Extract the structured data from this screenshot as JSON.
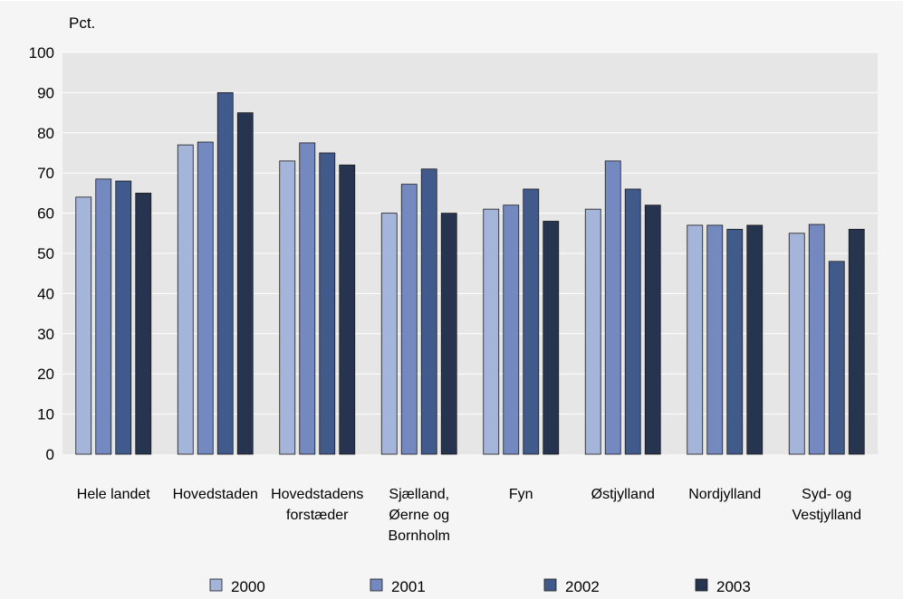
{
  "chart_data": {
    "type": "bar",
    "ylabel": "Pct.",
    "ylim": [
      0,
      100
    ],
    "yticks": [
      0,
      10,
      20,
      30,
      40,
      50,
      60,
      70,
      80,
      90,
      100
    ],
    "grid": true,
    "legend_position": "bottom",
    "categories": [
      [
        "Hele landet"
      ],
      [
        "Hovedstaden"
      ],
      [
        "Hovedstadens",
        "forstæder"
      ],
      [
        "Sjælland,",
        "Øerne og",
        "Bornholm"
      ],
      [
        "Fyn"
      ],
      [
        "Østjylland"
      ],
      [
        "Nordjylland"
      ],
      [
        "Syd- og",
        "Vestjylland"
      ]
    ],
    "series": [
      {
        "name": "2000",
        "color": "#a5b4d9",
        "values": [
          64,
          77,
          73,
          60,
          61,
          61,
          57,
          55
        ]
      },
      {
        "name": "2001",
        "color": "#7389c0",
        "values": [
          68.5,
          77.7,
          77.5,
          67.2,
          62,
          73,
          57,
          57.2
        ]
      },
      {
        "name": "2002",
        "color": "#415a8c",
        "values": [
          68,
          90,
          75,
          71,
          66,
          66,
          56,
          48
        ]
      },
      {
        "name": "2003",
        "color": "#26344f",
        "values": [
          65,
          85,
          72,
          60,
          58,
          62,
          57,
          56
        ]
      }
    ]
  }
}
